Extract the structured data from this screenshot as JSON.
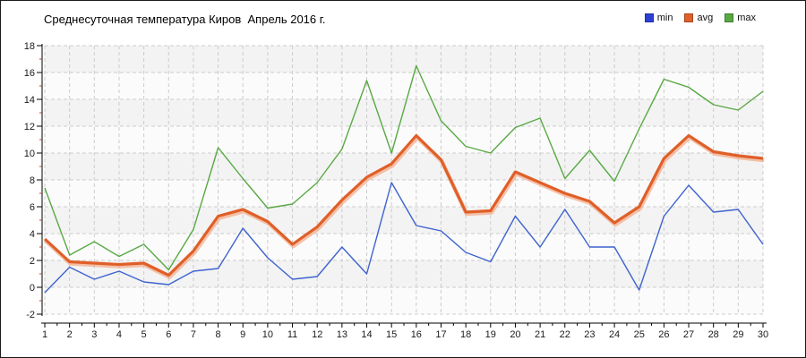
{
  "title": "Среднесуточная температура Киров  Апрель 2016 г.",
  "legend": {
    "items": [
      {
        "label": "min",
        "color": "#2d3fd3"
      },
      {
        "label": "avg",
        "color": "#e0612a"
      },
      {
        "label": "max",
        "color": "#58a944"
      }
    ]
  },
  "chart_data": {
    "type": "line",
    "title": "Среднесуточная температура Киров  Апрель 2016 г.",
    "x": [
      1,
      2,
      3,
      4,
      5,
      6,
      7,
      8,
      9,
      10,
      11,
      12,
      13,
      14,
      15,
      16,
      17,
      18,
      19,
      20,
      21,
      22,
      23,
      24,
      25,
      26,
      27,
      28,
      29,
      30
    ],
    "series": [
      {
        "name": "min",
        "color": "#3e63d0",
        "width": 1.4,
        "values": [
          -0.4,
          1.5,
          0.6,
          1.2,
          0.4,
          0.2,
          1.2,
          1.4,
          4.4,
          2.2,
          0.6,
          0.8,
          3.0,
          1.0,
          7.8,
          4.6,
          4.2,
          2.6,
          1.9,
          5.3,
          3.0,
          5.8,
          3.0,
          3.0,
          -0.2,
          5.3,
          7.6,
          5.6,
          5.8,
          3.2
        ]
      },
      {
        "name": "avg",
        "color": "#e05f28",
        "width": 3.2,
        "glow": "#f2a37c",
        "values": [
          3.6,
          1.9,
          1.8,
          1.7,
          1.8,
          0.9,
          2.7,
          5.3,
          5.8,
          4.9,
          3.2,
          4.5,
          6.5,
          8.2,
          9.2,
          11.3,
          9.5,
          5.6,
          5.7,
          8.6,
          7.8,
          7.0,
          6.4,
          4.8,
          6.0,
          9.6,
          11.3,
          10.1,
          9.8,
          9.6
        ]
      },
      {
        "name": "max",
        "color": "#58a944",
        "width": 1.4,
        "values": [
          7.4,
          2.4,
          3.4,
          2.3,
          3.2,
          1.3,
          4.3,
          10.4,
          8.1,
          5.9,
          6.2,
          7.8,
          10.3,
          15.4,
          10.0,
          16.5,
          12.4,
          10.5,
          10.0,
          11.9,
          12.6,
          8.1,
          10.2,
          7.9,
          11.8,
          15.5,
          14.9,
          13.6,
          13.2,
          14.6
        ]
      }
    ],
    "xlim": [
      1,
      30
    ],
    "ylim": [
      -2,
      18
    ],
    "x_ticks": [
      1,
      2,
      3,
      4,
      5,
      6,
      7,
      8,
      9,
      10,
      11,
      12,
      13,
      14,
      15,
      16,
      17,
      18,
      19,
      20,
      21,
      22,
      23,
      24,
      25,
      26,
      27,
      28,
      29,
      30
    ],
    "y_ticks": [
      -2,
      0,
      2,
      4,
      6,
      8,
      10,
      12,
      14,
      16,
      18
    ],
    "grid": true,
    "legend_position": "top-right",
    "band_colors": [
      "#f3f3f3",
      "#fbfbfb"
    ],
    "grid_color": "#cccccc",
    "axis_color": "#000000",
    "minor_tick_color": "#c03a2b",
    "tick_label_color": "#1a1a1a"
  }
}
